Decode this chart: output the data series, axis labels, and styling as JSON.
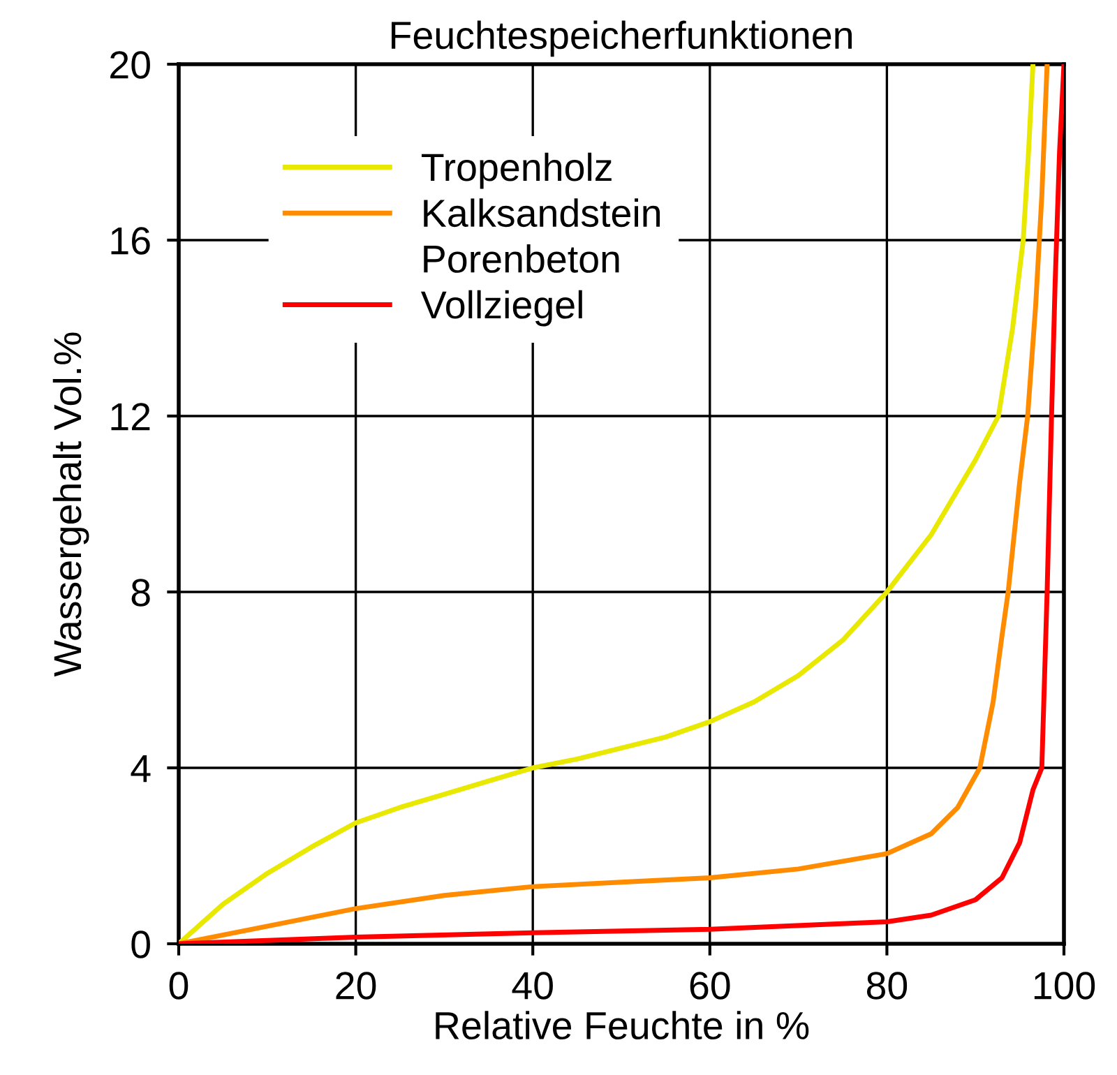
{
  "chart_data": {
    "type": "line",
    "title": "Feuchtespeicherfunktionen",
    "xlabel": "Relative Feuchte in %",
    "ylabel": "Wassergehalt Vol.%",
    "xlim": [
      0,
      100
    ],
    "ylim": [
      0,
      20
    ],
    "xticks": [
      0,
      20,
      40,
      60,
      80,
      100
    ],
    "yticks": [
      0,
      4,
      8,
      12,
      16,
      20
    ],
    "grid": true,
    "legend": "top left",
    "marker": "none",
    "line_style": "solid",
    "series": [
      {
        "name": "Tropenholz",
        "color": "#e8e800",
        "x": [
          0,
          5,
          10,
          15,
          20,
          25,
          30,
          35,
          40,
          45,
          50,
          55,
          60,
          65,
          70,
          75,
          80,
          85,
          90,
          92.6,
          94.2,
          95.4,
          96,
          96.5
        ],
        "values": [
          0,
          0.9,
          1.6,
          2.2,
          2.75,
          3.1,
          3.4,
          3.7,
          4.0,
          4.2,
          4.45,
          4.7,
          5.05,
          5.5,
          6.1,
          6.9,
          8.0,
          9.3,
          11.0,
          12,
          14,
          16,
          18,
          20
        ]
      },
      {
        "name": "Kalksandstein",
        "color": "#ff8c00",
        "x": [
          0,
          10,
          20,
          30,
          40,
          50,
          60,
          70,
          80,
          85,
          88,
          90.5,
          92,
          93,
          93.7,
          95,
          95.9,
          96.8,
          97.5,
          98.1
        ],
        "values": [
          0,
          0.4,
          0.8,
          1.1,
          1.3,
          1.4,
          1.5,
          1.7,
          2.05,
          2.5,
          3.1,
          4,
          5.5,
          7,
          8,
          10.5,
          12,
          14.5,
          17,
          20
        ]
      },
      {
        "name": "Porenbeton"
      },
      {
        "name": "Vollziegel",
        "color": "#ff0000",
        "x": [
          0,
          20,
          40,
          60,
          80,
          85,
          90,
          93,
          95,
          96.5,
          97.5,
          98.1,
          98.6,
          99,
          99.5,
          100
        ],
        "values": [
          0,
          0.15,
          0.25,
          0.33,
          0.5,
          0.65,
          1.0,
          1.5,
          2.3,
          3.5,
          4,
          8,
          12,
          15,
          18,
          20
        ]
      }
    ]
  }
}
